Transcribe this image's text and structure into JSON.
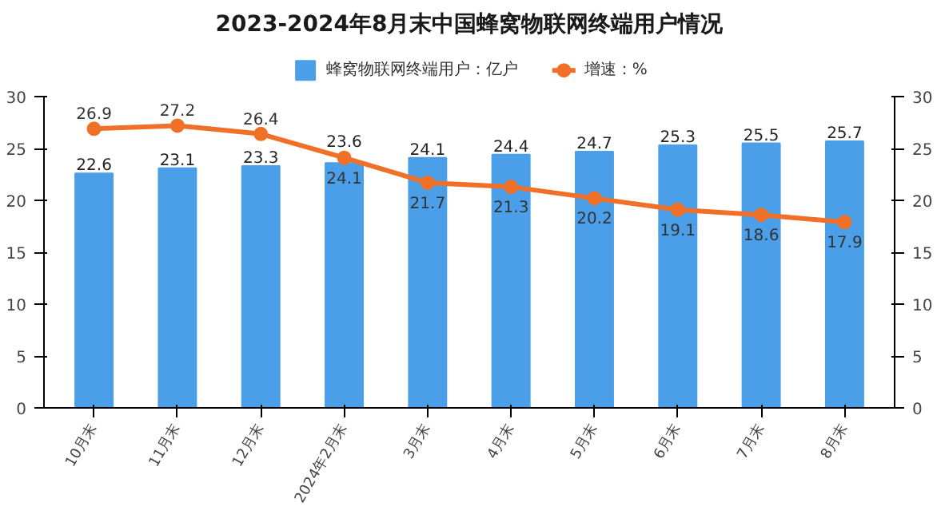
{
  "chart_data": {
    "type": "bar",
    "title": "2023-2024年8月末中国蜂窝物联网终端用户情况",
    "categories": [
      "10月末",
      "11月末",
      "12月末",
      "2024年2月末",
      "3月末",
      "4月末",
      "5月末",
      "6月末",
      "7月末",
      "8月末"
    ],
    "series": [
      {
        "name": "蜂窝物联网终端用户：亿户",
        "color": "#4a9fe8",
        "values": [
          22.6,
          23.1,
          23.3,
          23.6,
          24.1,
          24.4,
          24.7,
          25.3,
          25.5,
          25.7
        ]
      },
      {
        "name": "增速：%",
        "type": "line",
        "axis": "y2",
        "color": "#f07028",
        "marker": "circle",
        "values": [
          26.9,
          27.2,
          26.4,
          24.1,
          21.7,
          21.3,
          20.2,
          19.1,
          18.6,
          17.9
        ]
      }
    ],
    "ylim": [
      0,
      30
    ],
    "yticks": [
      0,
      5,
      10,
      15,
      20,
      25,
      30
    ],
    "y2lim": [
      0,
      30
    ],
    "y2ticks": [
      0,
      5,
      10,
      15,
      20,
      25,
      30
    ],
    "data_labels": true,
    "grid": false,
    "legend": "top"
  }
}
